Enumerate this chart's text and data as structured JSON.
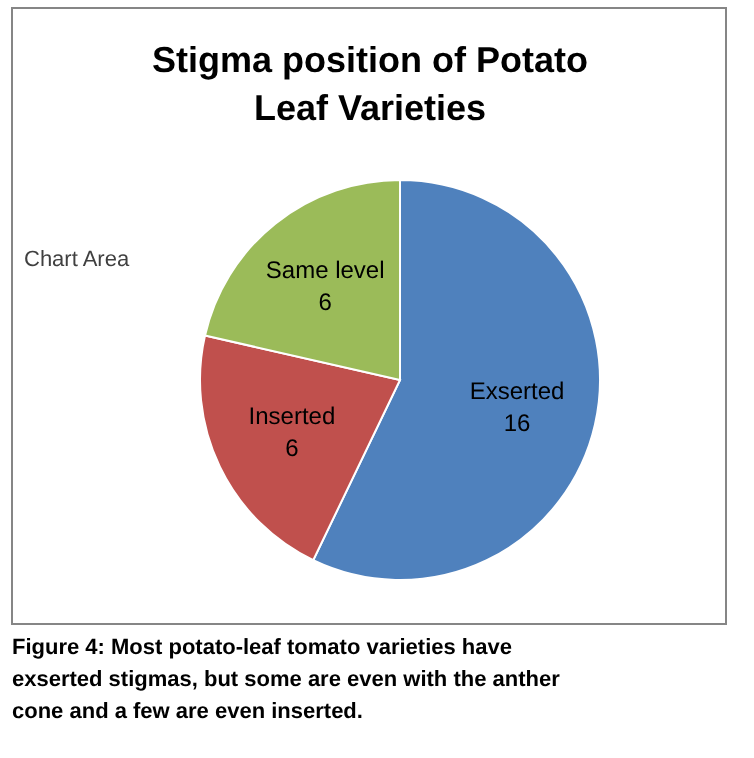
{
  "chart_data": {
    "type": "pie",
    "title": "Stigma position of Potato Leaf Varieties",
    "categories": [
      "Exserted",
      "Inserted",
      "Same level"
    ],
    "values": [
      16,
      6,
      6
    ],
    "colors": [
      "#4f81bd",
      "#c0504d",
      "#9bbb59"
    ],
    "data_labels": true,
    "annotations": [
      "Chart Area",
      "Figure 4: Most potato-leaf tomato varieties have exserted stigmas, but some are even with the anther cone and a few are even inserted."
    ]
  }
}
